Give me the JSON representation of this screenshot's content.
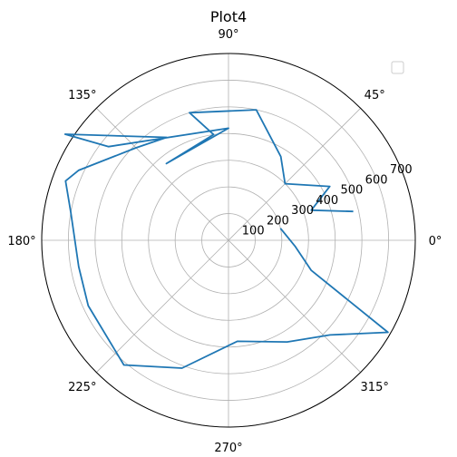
{
  "chart_data": {
    "type": "polar-line",
    "title": "Plot4",
    "theta_unit": "degrees",
    "angle_ticks": [
      "0°",
      "45°",
      "90°",
      "135°",
      "180°",
      "225°",
      "270°",
      "315°"
    ],
    "radial_ticks": [
      "100",
      "200",
      "300",
      "400",
      "500",
      "600",
      "700"
    ],
    "rlim": [
      0,
      700
    ],
    "grid": true,
    "legend": {
      "placement": "top-right",
      "entries": [
        ""
      ]
    },
    "series": [
      {
        "color": "#1f77b4",
        "points": [
          {
            "theta": 13,
            "r": 480
          },
          {
            "theta": 20,
            "r": 330
          },
          {
            "theta": 28,
            "r": 430
          },
          {
            "theta": 45,
            "r": 300
          },
          {
            "theta": 58,
            "r": 370
          },
          {
            "theta": 78,
            "r": 500
          },
          {
            "theta": 107,
            "r": 500
          },
          {
            "theta": 98,
            "r": 400
          },
          {
            "theta": 129,
            "r": 370
          },
          {
            "theta": 90,
            "r": 420
          },
          {
            "theta": 142,
            "r": 570
          },
          {
            "theta": 147,
            "r": 730
          },
          {
            "theta": 121,
            "r": 450
          },
          {
            "theta": 135,
            "r": 490
          },
          {
            "theta": 155,
            "r": 620
          },
          {
            "theta": 160,
            "r": 650
          },
          {
            "theta": 170,
            "r": 600
          },
          {
            "theta": 190,
            "r": 570
          },
          {
            "theta": 205,
            "r": 580
          },
          {
            "theta": 230,
            "r": 610
          },
          {
            "theta": 250,
            "r": 510
          },
          {
            "theta": 275,
            "r": 380
          },
          {
            "theta": 300,
            "r": 440
          },
          {
            "theta": 317,
            "r": 520
          },
          {
            "theta": 330,
            "r": 690
          },
          {
            "theta": 340,
            "r": 330
          },
          {
            "theta": 355,
            "r": 250
          },
          {
            "theta": 13,
            "r": 200
          }
        ]
      }
    ]
  }
}
